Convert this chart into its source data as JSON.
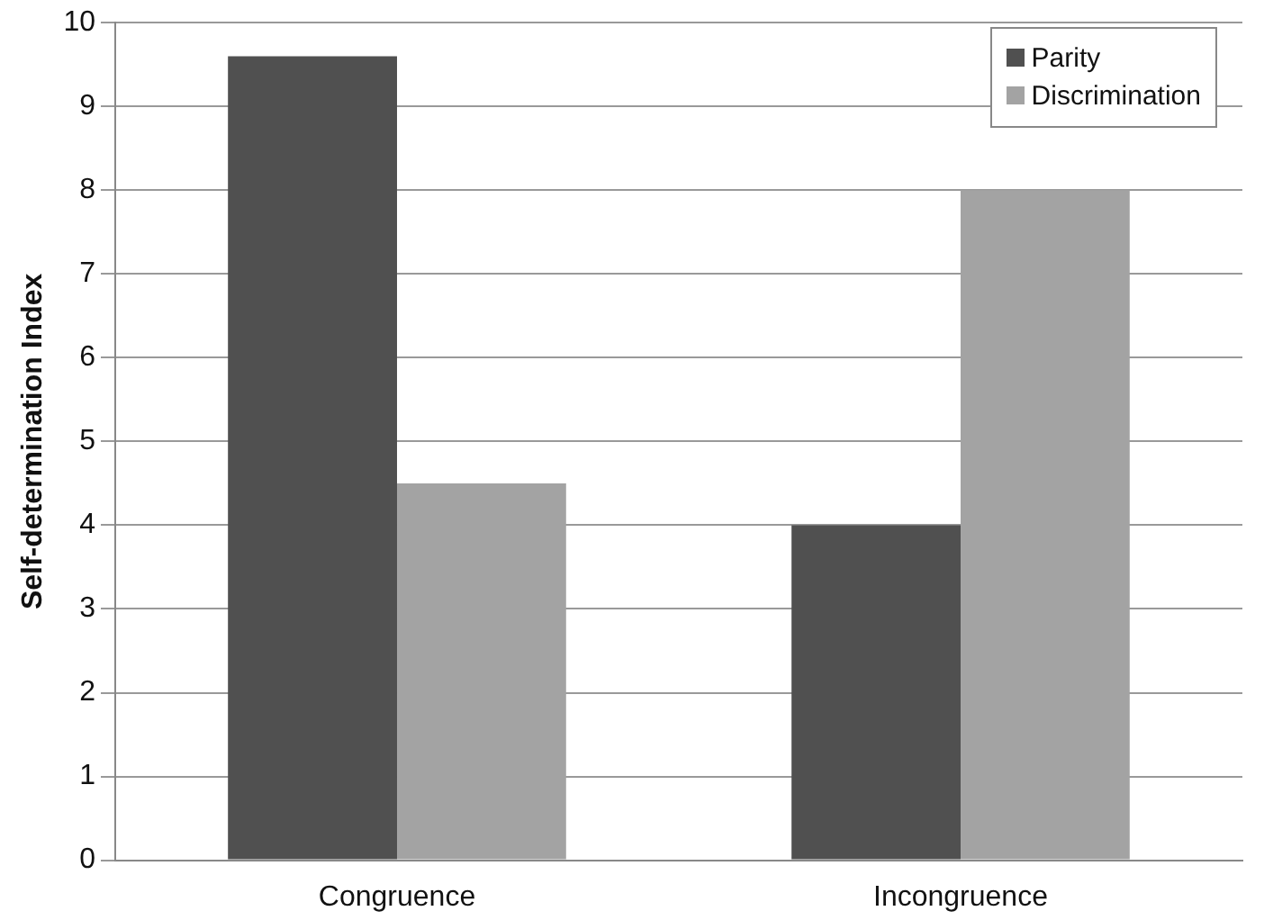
{
  "chart_data": {
    "type": "bar",
    "ylabel": "Self-determination Index",
    "categories": [
      "Congruence",
      "Incongruence"
    ],
    "series": [
      {
        "name": "Parity",
        "color": "#505050",
        "values": [
          9.6,
          4.0
        ]
      },
      {
        "name": "Discrimination",
        "color": "#a3a3a3",
        "values": [
          4.5,
          8.0
        ]
      }
    ],
    "ylim": [
      0,
      10
    ],
    "yticks": [
      0,
      1,
      2,
      3,
      4,
      5,
      6,
      7,
      8,
      9,
      10
    ],
    "grid": "y",
    "legend": "top right"
  }
}
